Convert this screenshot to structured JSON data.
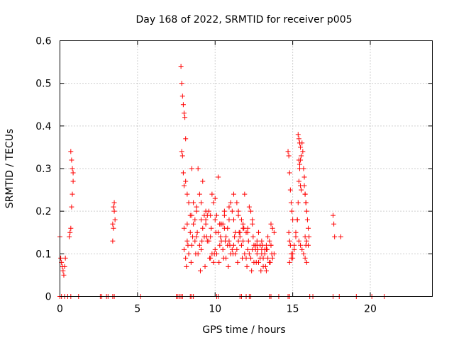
{
  "chart_data": {
    "type": "scatter",
    "title": "Day 168 of 2022, SRMTID for receiver p005",
    "xlabel": "GPS time / hours",
    "ylabel": "SRMTID / TECUs",
    "xlim": [
      0,
      24
    ],
    "ylim": [
      0,
      0.6
    ],
    "xticks": [
      0,
      5,
      10,
      15,
      20
    ],
    "yticks": [
      0,
      0.1,
      0.2,
      0.3,
      0.4,
      0.5,
      0.6
    ],
    "xtick_labels": [
      "0",
      "5",
      "10",
      "15",
      "20"
    ],
    "ytick_labels": [
      "0",
      "0.1",
      "0.2",
      "0.3",
      "0.4",
      "0.5",
      "0.6"
    ],
    "grid": true,
    "marker": "+",
    "color": "#ff0000",
    "series": [
      {
        "x": [
          0.0,
          0.05,
          0.1,
          0.15,
          0.2,
          0.25,
          0.3,
          0.35,
          0.7,
          0.75,
          0.8,
          0.85,
          0.6,
          0.65,
          0.7,
          0.75,
          0.8,
          0.85,
          3.4,
          3.45,
          3.5,
          3.5,
          3.55,
          3.4,
          3.45,
          7.8,
          7.85,
          7.9,
          7.95,
          8.0,
          8.05,
          8.1,
          7.85,
          7.9,
          7.95,
          8.0,
          8.1,
          8.2,
          8.3,
          8.4,
          8.5,
          8.6,
          8.7,
          8.8,
          8.9,
          9.0,
          9.1,
          9.2,
          9.3,
          9.4,
          9.5,
          9.6,
          9.7,
          9.8,
          9.9,
          10.0,
          10.1,
          10.2,
          10.3,
          10.4,
          10.5,
          10.6,
          10.7,
          10.8,
          10.9,
          11.0,
          11.1,
          11.2,
          11.3,
          11.4,
          11.5,
          11.6,
          11.7,
          11.8,
          11.9,
          12.0,
          12.1,
          12.2,
          12.3,
          12.4,
          12.5,
          12.6,
          12.7,
          12.8,
          12.9,
          13.0,
          13.1,
          13.2,
          13.3,
          13.4,
          13.5,
          13.6,
          13.7,
          13.8,
          8.0,
          8.2,
          8.4,
          8.6,
          8.8,
          9.0,
          9.2,
          9.4,
          9.6,
          9.8,
          10.0,
          10.2,
          10.4,
          10.6,
          10.8,
          11.0,
          11.2,
          11.4,
          11.6,
          11.8,
          12.0,
          12.2,
          12.4,
          12.6,
          12.8,
          13.0,
          13.2,
          13.4,
          13.6,
          13.8,
          8.1,
          8.3,
          8.5,
          8.7,
          8.9,
          9.1,
          9.3,
          9.5,
          9.7,
          9.9,
          10.1,
          10.3,
          10.5,
          10.7,
          10.9,
          11.1,
          11.3,
          11.5,
          11.7,
          11.9,
          12.1,
          12.3,
          12.5,
          12.7,
          12.9,
          13.1,
          13.3,
          13.5,
          13.7,
          8.0,
          8.2,
          8.5,
          8.8,
          9.1,
          9.4,
          9.7,
          10.0,
          10.3,
          10.6,
          10.9,
          11.2,
          11.5,
          11.8,
          12.1,
          12.4,
          12.7,
          13.0,
          13.3,
          13.6,
          8.15,
          8.45,
          8.75,
          9.05,
          9.35,
          9.65,
          9.95,
          10.25,
          10.55,
          10.85,
          11.15,
          11.45,
          11.75,
          12.05,
          12.35,
          12.65,
          12.95,
          13.25,
          13.55,
          8.25,
          8.55,
          8.85,
          9.15,
          9.45,
          9.75,
          10.05,
          10.35,
          10.65,
          10.95,
          11.25,
          11.55,
          11.85,
          12.15,
          12.45,
          12.75,
          13.05,
          13.35,
          13.65,
          14.7,
          14.75,
          14.8,
          14.85,
          14.9,
          14.95,
          15.0,
          14.75,
          14.8,
          14.85,
          14.9,
          15.0,
          15.1,
          15.2,
          15.3,
          15.35,
          15.4,
          15.45,
          15.5,
          15.55,
          15.6,
          15.65,
          15.7,
          15.75,
          15.8,
          15.85,
          15.9,
          15.95,
          16.0,
          16.05,
          14.8,
          14.9,
          15.0,
          15.1,
          15.2,
          15.3,
          15.4,
          15.5,
          15.6,
          15.7,
          15.8,
          15.9,
          16.0,
          15.35,
          15.4,
          15.45,
          15.5,
          15.4,
          15.45,
          15.5,
          15.55,
          15.8,
          15.85,
          15.9,
          15.75,
          15.8,
          15.85,
          17.6,
          17.65,
          17.7,
          18.1,
          0.0,
          0.1,
          0.3,
          0.5,
          0.7,
          1.2,
          2.6,
          2.7,
          3.0,
          3.1,
          3.4,
          3.5,
          5.2,
          7.5,
          7.6,
          7.7,
          7.8,
          7.9,
          8.4,
          8.5,
          8.6,
          10.1,
          10.2,
          11.6,
          11.7,
          12.0,
          12.2,
          12.3,
          13.5,
          13.6,
          14.1,
          14.7,
          14.8,
          16.1,
          16.3,
          17.6,
          18.0,
          19.1,
          20.1,
          20.9
        ],
        "y": [
          0.14,
          0.09,
          0.08,
          0.07,
          0.06,
          0.05,
          0.07,
          0.09,
          0.34,
          0.32,
          0.3,
          0.29,
          0.14,
          0.15,
          0.16,
          0.21,
          0.24,
          0.27,
          0.17,
          0.16,
          0.2,
          0.22,
          0.18,
          0.13,
          0.21,
          0.54,
          0.5,
          0.47,
          0.45,
          0.43,
          0.42,
          0.37,
          0.34,
          0.33,
          0.29,
          0.26,
          0.27,
          0.24,
          0.22,
          0.19,
          0.3,
          0.22,
          0.18,
          0.21,
          0.3,
          0.24,
          0.22,
          0.27,
          0.19,
          0.2,
          0.19,
          0.2,
          0.14,
          0.24,
          0.22,
          0.23,
          0.19,
          0.28,
          0.17,
          0.17,
          0.17,
          0.2,
          0.14,
          0.16,
          0.21,
          0.22,
          0.2,
          0.24,
          0.15,
          0.22,
          0.2,
          0.15,
          0.18,
          0.17,
          0.24,
          0.15,
          0.16,
          0.21,
          0.2,
          0.18,
          0.12,
          0.11,
          0.13,
          0.15,
          0.12,
          0.1,
          0.09,
          0.11,
          0.12,
          0.14,
          0.13,
          0.17,
          0.16,
          0.15,
          0.11,
          0.13,
          0.15,
          0.17,
          0.14,
          0.12,
          0.16,
          0.18,
          0.13,
          0.1,
          0.11,
          0.15,
          0.13,
          0.16,
          0.12,
          0.1,
          0.12,
          0.11,
          0.14,
          0.13,
          0.09,
          0.1,
          0.11,
          0.12,
          0.08,
          0.11,
          0.1,
          0.09,
          0.12,
          0.1,
          0.09,
          0.1,
          0.12,
          0.13,
          0.1,
          0.11,
          0.14,
          0.13,
          0.09,
          0.08,
          0.1,
          0.12,
          0.11,
          0.09,
          0.13,
          0.11,
          0.1,
          0.13,
          0.12,
          0.1,
          0.11,
          0.09,
          0.08,
          0.1,
          0.09,
          0.07,
          0.06,
          0.08,
          0.09,
          0.16,
          0.17,
          0.19,
          0.2,
          0.18,
          0.17,
          0.19,
          0.18,
          0.17,
          0.19,
          0.18,
          0.18,
          0.19,
          0.16,
          0.15,
          0.17,
          0.12,
          0.13,
          0.11,
          0.12,
          0.07,
          0.08,
          0.1,
          0.06,
          0.07,
          0.09,
          0.1,
          0.08,
          0.09,
          0.07,
          0.1,
          0.08,
          0.09,
          0.07,
          0.06,
          0.08,
          0.06,
          0.07,
          0.08,
          0.12,
          0.14,
          0.15,
          0.13,
          0.14,
          0.16,
          0.15,
          0.14,
          0.13,
          0.12,
          0.14,
          0.15,
          0.16,
          0.13,
          0.14,
          0.11,
          0.12,
          0.11,
          0.1,
          0.34,
          0.33,
          0.29,
          0.25,
          0.22,
          0.2,
          0.18,
          0.15,
          0.13,
          0.12,
          0.1,
          0.09,
          0.11,
          0.14,
          0.18,
          0.22,
          0.27,
          0.3,
          0.32,
          0.33,
          0.36,
          0.34,
          0.3,
          0.28,
          0.24,
          0.22,
          0.2,
          0.18,
          0.16,
          0.14,
          0.08,
          0.09,
          0.1,
          0.12,
          0.15,
          0.18,
          0.13,
          0.12,
          0.11,
          0.1,
          0.09,
          0.08,
          0.12,
          0.38,
          0.37,
          0.36,
          0.35,
          0.32,
          0.31,
          0.26,
          0.25,
          0.14,
          0.12,
          0.13,
          0.26,
          0.24,
          0.22,
          0.19,
          0.17,
          0.14,
          0.14,
          0,
          0,
          0,
          0,
          0,
          0,
          0,
          0,
          0,
          0,
          0,
          0,
          0,
          0,
          0,
          0,
          0,
          0,
          0,
          0,
          0,
          0,
          0,
          0,
          0,
          0,
          0,
          0,
          0,
          0,
          0,
          0,
          0,
          0,
          0,
          0,
          0,
          0,
          0,
          0
        ]
      }
    ]
  }
}
